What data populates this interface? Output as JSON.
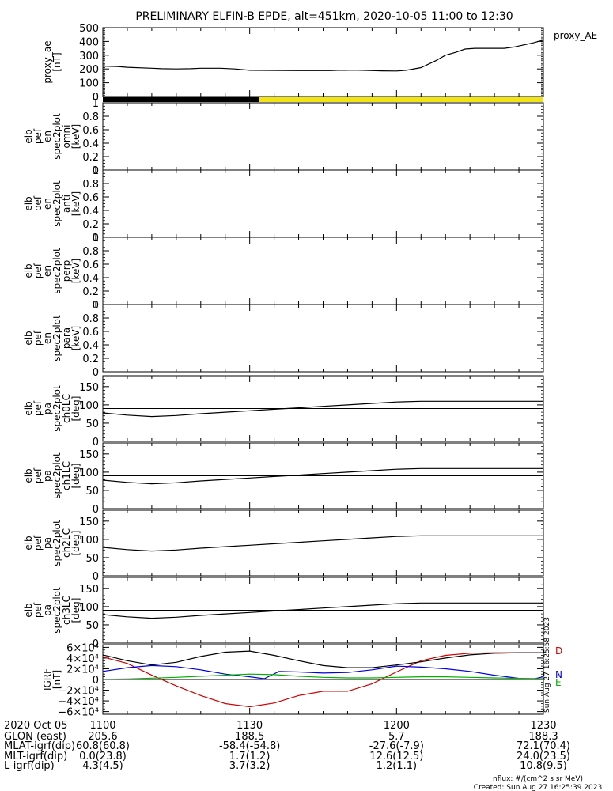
{
  "title": "PRELIMINARY ELFIN-B EPDE, alt=451km, 2020-10-05 11:00 to 12:30",
  "panels": [
    {
      "id": "ae",
      "ylabel_lines": [
        "proxy_ae",
        "[nT]"
      ],
      "side_label": "proxy_AE",
      "ylim": [
        0,
        500
      ],
      "yticks": [
        0,
        100,
        200,
        300,
        400,
        500
      ],
      "x": [
        0,
        3,
        5,
        10,
        12,
        15,
        18,
        20,
        24,
        27,
        30,
        40,
        43,
        45,
        46.5,
        48,
        49.5,
        51,
        53,
        55,
        57,
        60,
        62,
        65,
        68,
        70,
        72,
        74,
        76,
        78,
        80,
        82,
        84,
        86,
        88,
        90
      ],
      "y": [
        220,
        218,
        212,
        205,
        202,
        200,
        202,
        205,
        205,
        200,
        190,
        188,
        188,
        188,
        188,
        190,
        190,
        192,
        190,
        188,
        186,
        185,
        190,
        210,
        260,
        300,
        320,
        345,
        350,
        350,
        350,
        350,
        360,
        375,
        390,
        410
      ]
    },
    {
      "id": "bar",
      "segments": [
        {
          "from": 0,
          "to": 32,
          "color": "#000000"
        },
        {
          "from": 32,
          "to": 90,
          "color": "#f2e414"
        }
      ]
    },
    {
      "id": "omni",
      "ylabel_lines": [
        "elb",
        "pef",
        "en",
        "spec2plot",
        "omni",
        "[keV]"
      ],
      "ylim": [
        0,
        1
      ],
      "yticks": [
        0.0,
        0.2,
        0.4,
        0.6,
        0.8,
        1.0
      ]
    },
    {
      "id": "anti",
      "ylabel_lines": [
        "elb",
        "pef",
        "en",
        "spec2plot",
        "anti",
        "[keV]"
      ],
      "ylim": [
        0,
        1
      ],
      "yticks": [
        0.0,
        0.2,
        0.4,
        0.6,
        0.8,
        1.0
      ]
    },
    {
      "id": "perp",
      "ylabel_lines": [
        "elb",
        "pef",
        "en",
        "spec2plot",
        "perp",
        "[keV]"
      ],
      "ylim": [
        0,
        1
      ],
      "yticks": [
        0.0,
        0.2,
        0.4,
        0.6,
        0.8,
        1.0
      ]
    },
    {
      "id": "para",
      "ylabel_lines": [
        "elb",
        "pef",
        "en",
        "spec2plot",
        "para",
        "[keV]"
      ],
      "ylim": [
        0,
        1
      ],
      "yticks": [
        0.0,
        0.2,
        0.4,
        0.6,
        0.8,
        1.0
      ]
    },
    {
      "id": "ch0",
      "ylabel_lines": [
        "elb",
        "pef",
        "pa",
        "spec2plot",
        "ch0LC",
        "[deg]"
      ],
      "ylim": [
        0,
        180
      ],
      "yticks": [
        0,
        50,
        100,
        150
      ],
      "hline": 90,
      "x": [
        0,
        5,
        10,
        15,
        20,
        25,
        30,
        35,
        40,
        45,
        50,
        55,
        60,
        65,
        70,
        75,
        80,
        85,
        90
      ],
      "y": [
        78,
        72,
        68,
        71,
        76,
        80,
        84,
        88,
        92,
        96,
        100,
        104,
        108,
        110,
        110,
        110,
        110,
        110,
        110
      ]
    },
    {
      "id": "ch1",
      "ylabel_lines": [
        "elb",
        "pef",
        "pa",
        "spec2plot",
        "ch1LC",
        "[deg]"
      ],
      "ylim": [
        0,
        180
      ],
      "yticks": [
        0,
        50,
        100,
        150
      ],
      "hline": 90,
      "x": [
        0,
        5,
        10,
        15,
        20,
        25,
        30,
        35,
        40,
        45,
        50,
        55,
        60,
        65,
        70,
        75,
        80,
        85,
        90
      ],
      "y": [
        78,
        72,
        68,
        71,
        76,
        80,
        84,
        88,
        92,
        96,
        100,
        104,
        108,
        110,
        110,
        110,
        110,
        110,
        110
      ]
    },
    {
      "id": "ch2",
      "ylabel_lines": [
        "elb",
        "pef",
        "pa",
        "spec2plot",
        "ch2LC",
        "[deg]"
      ],
      "ylim": [
        0,
        180
      ],
      "yticks": [
        0,
        50,
        100,
        150
      ],
      "hline": 90,
      "x": [
        0,
        5,
        10,
        15,
        20,
        25,
        30,
        35,
        40,
        45,
        50,
        55,
        60,
        65,
        70,
        75,
        80,
        85,
        90
      ],
      "y": [
        78,
        72,
        68,
        71,
        76,
        80,
        84,
        88,
        92,
        96,
        100,
        104,
        108,
        110,
        110,
        110,
        110,
        110,
        110
      ]
    },
    {
      "id": "ch3",
      "ylabel_lines": [
        "elb",
        "pef",
        "pa",
        "spec2plot",
        "ch3LC",
        "[deg]"
      ],
      "ylim": [
        0,
        180
      ],
      "yticks": [
        0,
        50,
        100,
        150
      ],
      "hline": 90,
      "x": [
        0,
        5,
        10,
        15,
        20,
        25,
        30,
        35,
        40,
        45,
        50,
        55,
        60,
        65,
        70,
        75,
        80,
        85,
        90
      ],
      "y": [
        78,
        72,
        68,
        71,
        76,
        80,
        84,
        88,
        92,
        96,
        100,
        104,
        108,
        110,
        110,
        110,
        110,
        110,
        110
      ]
    },
    {
      "id": "bgrf",
      "ylabel_lines": [
        "IGRF",
        "[nT]"
      ],
      "ylim": [
        -65000,
        65000
      ],
      "yticks": [
        -60000,
        -40000,
        -20000,
        0,
        20000,
        40000,
        60000
      ],
      "ytick_labels": [
        "−6×10⁴",
        "−4×10⁴",
        "−2×10⁴",
        "0",
        "2×10⁴",
        "4×10⁴",
        "6×10⁴"
      ],
      "hline": 0,
      "series": [
        {
          "name": "D",
          "color": "#d00000",
          "x": [
            0,
            5,
            10,
            15,
            20,
            25,
            30,
            35,
            40,
            45,
            50,
            55,
            60,
            65,
            70,
            75,
            80,
            85,
            90
          ],
          "y": [
            42000,
            30000,
            8000,
            -12000,
            -30000,
            -45000,
            -51000,
            -44000,
            -30000,
            -22000,
            -22000,
            -8000,
            14000,
            35000,
            45000,
            49000,
            50000,
            50000,
            50000
          ]
        },
        {
          "name": "N",
          "color": "#0000dd",
          "x": [
            0,
            5,
            10,
            15,
            20,
            25,
            30,
            33,
            36,
            40,
            45,
            50,
            55,
            60,
            65,
            70,
            75,
            80,
            85,
            88,
            90
          ],
          "y": [
            15000,
            22000,
            26000,
            24000,
            18000,
            10000,
            5000,
            1500,
            15000,
            14000,
            12000,
            13000,
            18000,
            25000,
            23000,
            20000,
            15000,
            8000,
            2000,
            1000,
            5000
          ]
        },
        {
          "name": "E",
          "color": "#00b000",
          "x": [
            0,
            5,
            10,
            15,
            20,
            25,
            30,
            35,
            40,
            45,
            50,
            55,
            60,
            65,
            70,
            75,
            80,
            85,
            90
          ],
          "y": [
            500,
            1000,
            2500,
            4000,
            6000,
            8000,
            10000,
            9000,
            6000,
            4000,
            3000,
            3000,
            4000,
            5000,
            5000,
            4000,
            3000,
            2000,
            1500
          ]
        },
        {
          "name": "",
          "color": "#000000",
          "x": [
            0,
            5,
            10,
            15,
            20,
            25,
            30,
            35,
            40,
            45,
            50,
            55,
            60,
            65,
            70,
            75,
            80,
            85,
            90
          ],
          "y": [
            46000,
            35000,
            27000,
            32000,
            43000,
            51000,
            53000,
            45000,
            35000,
            26000,
            22000,
            22000,
            27000,
            33000,
            40000,
            46000,
            49000,
            50000,
            50000
          ]
        }
      ],
      "line_labels": [
        {
          "text": "D",
          "color": "#d00000"
        },
        {
          "text": "N",
          "color": "#0000dd"
        },
        {
          "text": "E",
          "color": "#00b000"
        }
      ],
      "side_stamp": "Sun Aug 27 16:25:58 2023"
    }
  ],
  "xaxis": {
    "xlim": [
      0,
      90
    ],
    "tick_values": [
      0,
      30,
      60,
      90
    ],
    "tick_labels": [
      "1100",
      "1130",
      "1200",
      "1230"
    ]
  },
  "orbit_table": {
    "rows": [
      {
        "label": "2020 Oct 05",
        "values": [
          "1100",
          "1130",
          "1200",
          "1230"
        ]
      },
      {
        "label": "GLON (east)",
        "values": [
          "205.6",
          "188.5",
          "5.7",
          "188.3"
        ]
      },
      {
        "label": "MLAT-igrf(dip)",
        "values": [
          "60.8(60.8)",
          "-58.4(-54.8)",
          "-27.6(-7.9)",
          "72.1(70.4)"
        ]
      },
      {
        "label": "MLT-igrf(dip)",
        "values": [
          "0.0(23.8)",
          "1.7(1.2)",
          "12.6(12.5)",
          "24.0(23.5)"
        ]
      },
      {
        "label": "L-igrf(dip)",
        "values": [
          "4.3(4.5)",
          "3.7(3.2)",
          "1.2(1.1)",
          "10.8(9.5)"
        ]
      }
    ]
  },
  "footer": {
    "nflux": "nflux: #/(cm^2 s sr MeV)",
    "created": "Created: Sun Aug 27 16:25:39 2023"
  }
}
